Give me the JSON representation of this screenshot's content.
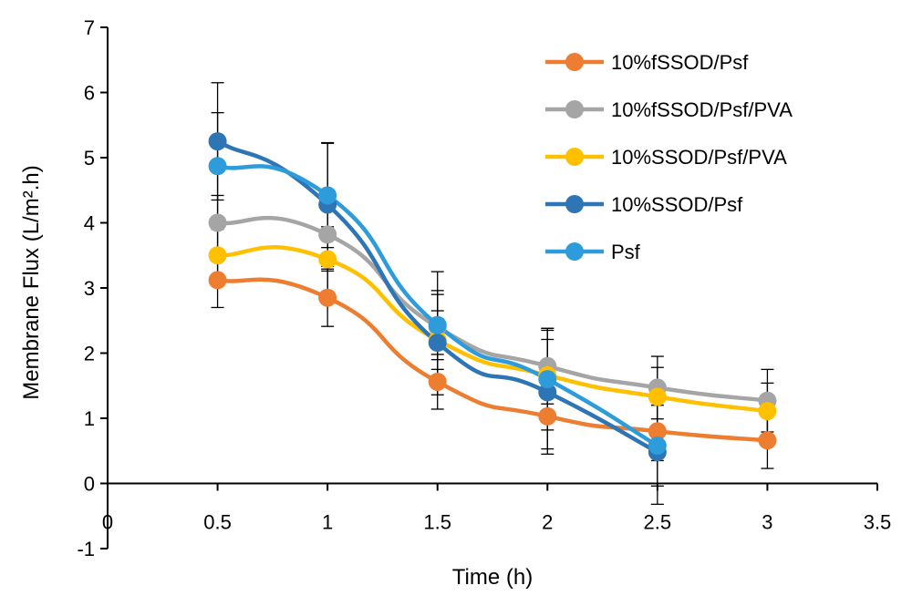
{
  "chart_data": {
    "type": "line",
    "xlabel": "Time (h)",
    "ylabel": "Membrane Flux  (L/m².h)",
    "xlim": [
      0,
      3.5
    ],
    "ylim": [
      -1,
      7
    ],
    "x_ticks": [
      "0",
      "0.5",
      "1",
      "1.5",
      "2",
      "2.5",
      "3",
      "3.5"
    ],
    "y_ticks": [
      "-1",
      "0",
      "1",
      "2",
      "3",
      "4",
      "5",
      "6",
      "7"
    ],
    "grid": false,
    "legend_position": "top-right",
    "smooth": true,
    "series": [
      {
        "name": "10%fSSOD/Psf",
        "color": "#ED7D31",
        "x": [
          0.5,
          1,
          1.5,
          2,
          2.5,
          3
        ],
        "values": [
          3.12,
          2.85,
          1.56,
          1.03,
          0.8,
          0.66
        ],
        "errors": [
          0.42,
          0.44,
          0.42,
          0.5,
          0.45,
          0.43
        ]
      },
      {
        "name": "10%fSSOD/Psf/PVA",
        "color": "#A5A5A5",
        "x": [
          0.5,
          1,
          1.5,
          2,
          2.5,
          3
        ],
        "values": [
          4.0,
          3.82,
          2.4,
          1.8,
          1.47,
          1.27
        ],
        "errors": [
          0.42,
          0.56,
          0.5,
          0.58,
          0.48,
          0.48
        ]
      },
      {
        "name": "10%SSOD/Psf/PVA",
        "color": "#FFC000",
        "x": [
          0.5,
          1,
          1.5,
          2,
          2.5,
          3
        ],
        "values": [
          3.5,
          3.44,
          2.2,
          1.66,
          1.33,
          1.11
        ],
        "errors": [
          0.4,
          0.5,
          0.45,
          0.55,
          0.45,
          0.43
        ]
      },
      {
        "name": "10%SSOD/Psf",
        "color": "#2E75B6",
        "x": [
          0.5,
          1,
          1.5,
          2,
          2.5
        ],
        "values": [
          5.25,
          4.28,
          2.16,
          1.4,
          0.48
        ],
        "errors": [
          0.9,
          0.95,
          0.8,
          0.95,
          0.8
        ]
      },
      {
        "name": "Psf",
        "color": "#2E9CDB",
        "x": [
          0.5,
          1,
          1.5,
          2,
          2.5
        ],
        "values": [
          4.87,
          4.42,
          2.43,
          1.6,
          0.58
        ],
        "errors": [
          0.82,
          0.8,
          0.82,
          0.78,
          0.62
        ]
      }
    ]
  }
}
